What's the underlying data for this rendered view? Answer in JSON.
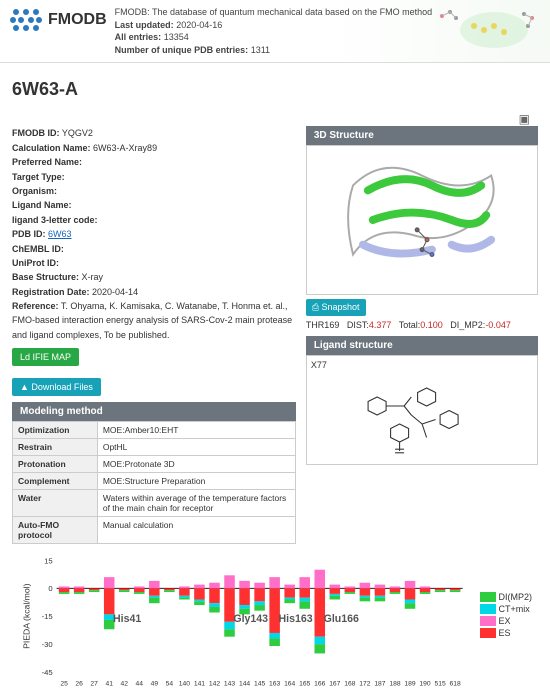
{
  "header": {
    "logo_text": "FMODB",
    "subtitle": "FMODB: The database of quantum mechanical data based on the FMO method",
    "last_updated_label": "Last updated:",
    "last_updated": "2020-04-16",
    "all_entries_label": "All entries:",
    "all_entries": "13354",
    "unique_pdb_label": "Number of unique PDB entries:",
    "unique_pdb": "1311"
  },
  "title": "6W63-A",
  "meta": {
    "fmodb_id": {
      "label": "FMODB ID:",
      "value": "YQGV2"
    },
    "calc_name": {
      "label": "Calculation Name:",
      "value": "6W63-A-Xray89"
    },
    "pref_name": {
      "label": "Preferred Name:",
      "value": ""
    },
    "target_type": {
      "label": "Target Type:",
      "value": ""
    },
    "organism": {
      "label": "Organism:",
      "value": ""
    },
    "ligand_name": {
      "label": "Ligand Name:",
      "value": ""
    },
    "ligand_code": {
      "label": "ligand 3-letter code:",
      "value": ""
    },
    "pdb_id": {
      "label": "PDB ID:",
      "value": "6W63"
    },
    "chembl": {
      "label": "ChEMBL ID:",
      "value": ""
    },
    "uniprot": {
      "label": "UniProt ID:",
      "value": ""
    },
    "base_struct": {
      "label": "Base Structure:",
      "value": "X-ray"
    },
    "reg_date": {
      "label": "Registration Date:",
      "value": "2020-04-14"
    },
    "reference": {
      "label": "Reference:",
      "value": "T. Ohyama, K. Kamisaka, C. Watanabe, T. Honma et. al., FMO-based interaction energy analysis of SARS-Cov-2 main protease and ligand complexes, To be published."
    }
  },
  "buttons": {
    "ifie": "Ld IFIE MAP",
    "download": "▲ Download Files",
    "snapshot": "⎙ Snapshot"
  },
  "panels": {
    "modeling": "Modeling method",
    "structure3d": "3D Structure",
    "ligand": "Ligand structure"
  },
  "modeling": [
    {
      "k": "Optimization",
      "v": "MOE:Amber10:EHT"
    },
    {
      "k": "Restrain",
      "v": "OptHL"
    },
    {
      "k": "Protonation",
      "v": "MOE:Protonate 3D"
    },
    {
      "k": "Complement",
      "v": "MOE:Structure Preparation"
    },
    {
      "k": "Water",
      "v": "Waters within average of the temperature factors of the main chain for receptor"
    },
    {
      "k": "Auto-FMO protocol",
      "v": "Manual calculation"
    }
  ],
  "dist": {
    "res": "THR169",
    "dist_label": "DIST:",
    "dist": "4.377",
    "total_label": "Total:",
    "total": "0.100",
    "dimp2_label": "DI_MP2:",
    "dimp2": "-0.047"
  },
  "ligand": {
    "name": "X77"
  },
  "chart": {
    "type": "stacked-bar",
    "ylabel": "PIEDA (kcal/mol)",
    "ylim": [
      -45,
      15
    ],
    "yticks": [
      -45,
      -30,
      -15,
      0,
      15
    ],
    "xticks": [
      "25",
      "26",
      "27",
      "41",
      "42",
      "44",
      "49",
      "54",
      "140",
      "141",
      "142",
      "143",
      "144",
      "145",
      "163",
      "164",
      "165",
      "166",
      "167",
      "168",
      "172",
      "187",
      "188",
      "189",
      "190",
      "515",
      "618"
    ],
    "annotations": [
      {
        "label": "His41",
        "x": 3
      },
      {
        "label": "Gly143",
        "x": 11
      },
      {
        "label": "His163",
        "x": 14
      },
      {
        "label": "Glu166",
        "x": 17
      }
    ],
    "series": {
      "ES": {
        "color": "#ff3030",
        "label": "ES"
      },
      "EX": {
        "color": "#ff6ec7",
        "label": "EX"
      },
      "CTmix": {
        "color": "#00d8e8",
        "label": "CT+mix"
      },
      "DIMP2": {
        "color": "#2ecc40",
        "label": "DI(MP2)"
      }
    },
    "stacks": [
      {
        "neg": {
          "ES": -2,
          "CTmix": 0,
          "DIMP2": -1
        },
        "pos": {
          "EX": 1
        }
      },
      {
        "neg": {
          "ES": -2,
          "CTmix": 0,
          "DIMP2": -1
        },
        "pos": {
          "EX": 1
        }
      },
      {
        "neg": {
          "ES": -1,
          "CTmix": 0,
          "DIMP2": -1
        },
        "pos": {
          "EX": 0
        }
      },
      {
        "neg": {
          "ES": -14,
          "CTmix": -3,
          "DIMP2": -5
        },
        "pos": {
          "EX": 6
        }
      },
      {
        "neg": {
          "ES": -1,
          "CTmix": 0,
          "DIMP2": -1
        },
        "pos": {
          "EX": 0
        }
      },
      {
        "neg": {
          "ES": -2,
          "CTmix": 0,
          "DIMP2": -1
        },
        "pos": {
          "EX": 1
        }
      },
      {
        "neg": {
          "ES": -4,
          "CTmix": -1,
          "DIMP2": -3
        },
        "pos": {
          "EX": 4
        }
      },
      {
        "neg": {
          "ES": -1,
          "CTmix": 0,
          "DIMP2": -1
        },
        "pos": {
          "EX": 0
        }
      },
      {
        "neg": {
          "ES": -4,
          "CTmix": -1,
          "DIMP2": -1
        },
        "pos": {
          "EX": 1
        }
      },
      {
        "neg": {
          "ES": -6,
          "CTmix": -1,
          "DIMP2": -2
        },
        "pos": {
          "EX": 2
        }
      },
      {
        "neg": {
          "ES": -8,
          "CTmix": -2,
          "DIMP2": -3
        },
        "pos": {
          "EX": 3
        }
      },
      {
        "neg": {
          "ES": -18,
          "CTmix": -4,
          "DIMP2": -4
        },
        "pos": {
          "EX": 7
        }
      },
      {
        "neg": {
          "ES": -9,
          "CTmix": -2,
          "DIMP2": -3
        },
        "pos": {
          "EX": 4
        }
      },
      {
        "neg": {
          "ES": -7,
          "CTmix": -2,
          "DIMP2": -3
        },
        "pos": {
          "EX": 3
        }
      },
      {
        "neg": {
          "ES": -24,
          "CTmix": -3,
          "DIMP2": -4
        },
        "pos": {
          "EX": 6
        }
      },
      {
        "neg": {
          "ES": -5,
          "CTmix": -1,
          "DIMP2": -2
        },
        "pos": {
          "EX": 2
        }
      },
      {
        "neg": {
          "ES": -5,
          "CTmix": -2,
          "DIMP2": -4
        },
        "pos": {
          "EX": 6
        }
      },
      {
        "neg": {
          "ES": -26,
          "CTmix": -4,
          "DIMP2": -5
        },
        "pos": {
          "EX": 10
        }
      },
      {
        "neg": {
          "ES": -3,
          "CTmix": -1,
          "DIMP2": -2
        },
        "pos": {
          "EX": 2
        }
      },
      {
        "neg": {
          "ES": -2,
          "CTmix": 0,
          "DIMP2": -1
        },
        "pos": {
          "EX": 1
        }
      },
      {
        "neg": {
          "ES": -4,
          "CTmix": -1,
          "DIMP2": -2
        },
        "pos": {
          "EX": 3
        }
      },
      {
        "neg": {
          "ES": -4,
          "CTmix": -1,
          "DIMP2": -2
        },
        "pos": {
          "EX": 2
        }
      },
      {
        "neg": {
          "ES": -2,
          "CTmix": 0,
          "DIMP2": -1
        },
        "pos": {
          "EX": 1
        }
      },
      {
        "neg": {
          "ES": -6,
          "CTmix": -2,
          "DIMP2": -3
        },
        "pos": {
          "EX": 4
        }
      },
      {
        "neg": {
          "ES": -2,
          "CTmix": 0,
          "DIMP2": -1
        },
        "pos": {
          "EX": 1
        }
      },
      {
        "neg": {
          "ES": -1,
          "CTmix": 0,
          "DIMP2": -1
        },
        "pos": {
          "EX": 0
        }
      },
      {
        "neg": {
          "ES": -1,
          "CTmix": 0,
          "DIMP2": -1
        },
        "pos": {
          "EX": 0
        }
      }
    ]
  }
}
